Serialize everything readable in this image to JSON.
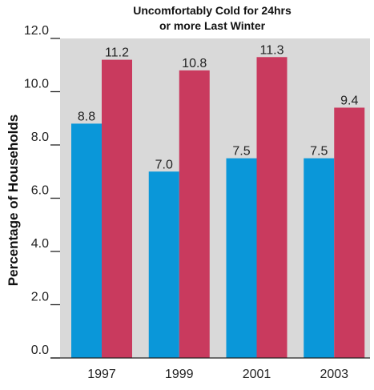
{
  "chart_data": {
    "type": "bar",
    "title_line1": "Uncomfortably Cold for 24hrs",
    "title_line2": "or more Last Winter",
    "xlabel": "",
    "ylabel": "Percentage of Households",
    "categories": [
      "1997",
      "1999",
      "2001",
      "2003"
    ],
    "series": [
      {
        "values": [
          8.8,
          7.0,
          7.5,
          7.5
        ],
        "value_labels": [
          "8.8",
          "7.0",
          "7.5",
          "7.5"
        ],
        "color": "#0a97d9"
      },
      {
        "values": [
          11.2,
          10.8,
          11.3,
          9.4
        ],
        "value_labels": [
          "11.2",
          "10.8",
          "11.3",
          "9.4"
        ],
        "color": "#c93a5e"
      }
    ],
    "ylim": [
      0,
      12
    ],
    "yticks": [
      "0.0",
      "2.0",
      "4.0",
      "6.0",
      "8.0",
      "10.0",
      "12.0"
    ],
    "plot_background": "#d9d9d9",
    "grid": false,
    "legend": "none"
  }
}
